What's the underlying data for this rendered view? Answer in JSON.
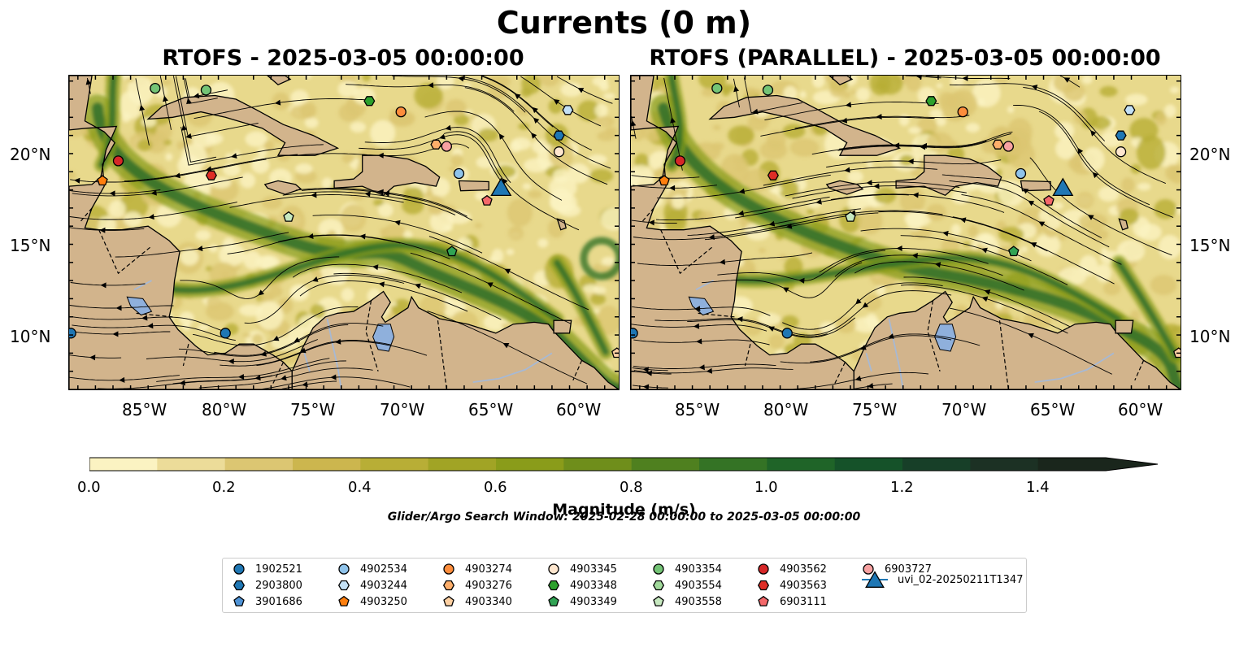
{
  "figure": {
    "title": "Currents (0 m)",
    "search_window": "Glider/Argo Search Window: 2025-02-28 00:00:00 to 2025-03-05 00:00:00"
  },
  "panels": [
    {
      "title": "RTOFS - 2025-03-05 00:00:00"
    },
    {
      "title": "RTOFS (PARALLEL) - 2025-03-05 00:00:00"
    }
  ],
  "axes": {
    "lat_labels": [
      "20°N",
      "15°N",
      "10°N"
    ],
    "lon_labels": [
      "85°W",
      "80°W",
      "75°W",
      "70°W",
      "65°W",
      "60°W"
    ],
    "lon_range": [
      -89.5,
      -58.2
    ],
    "lat_range": [
      7.0,
      24.3
    ]
  },
  "colorbar": {
    "title": "Magnitude (m/s)",
    "tick_labels": [
      "0.0",
      "0.2",
      "0.4",
      "0.6",
      "0.8",
      "1.0",
      "1.2",
      "1.4"
    ],
    "range": [
      0,
      1.5
    ],
    "extend": "max",
    "colors": [
      "#fbf3c2",
      "#ecdc99",
      "#dcc672",
      "#ccb64e",
      "#b8ae36",
      "#a1a425",
      "#8a9c1a",
      "#6f8e1b",
      "#4f801f",
      "#347325",
      "#1f6428",
      "#155229",
      "#173f28",
      "#1c3124",
      "#1a261c"
    ]
  },
  "colors": {
    "land": "#d2b48c",
    "lake": "#8fb0dc",
    "river": "#a7b9d4",
    "ocean_base": "#e8d98c",
    "current_core": "#2f6f2a"
  },
  "legend": {
    "items": [
      {
        "label": "1902521",
        "shape": "circle",
        "color": "#1f77b4"
      },
      {
        "label": "2903800",
        "shape": "hexagon",
        "color": "#1f77b4"
      },
      {
        "label": "3901686",
        "shape": "pentagon",
        "color": "#4f93d6"
      },
      {
        "label": "4902534",
        "shape": "circle",
        "color": "#8fc3ea"
      },
      {
        "label": "4903244",
        "shape": "hexagon",
        "color": "#c3e0f5"
      },
      {
        "label": "4903250",
        "shape": "pentagon",
        "color": "#ff7f0e"
      },
      {
        "label": "4903274",
        "shape": "circle",
        "color": "#fd8d3c"
      },
      {
        "label": "4903276",
        "shape": "hexagon",
        "color": "#fdae6b"
      },
      {
        "label": "4903340",
        "shape": "pentagon",
        "color": "#fdd0a2"
      },
      {
        "label": "4903345",
        "shape": "circle",
        "color": "#fee6ce"
      },
      {
        "label": "4903348",
        "shape": "hexagon",
        "color": "#2ca02c"
      },
      {
        "label": "4903349",
        "shape": "pentagon",
        "color": "#31a354"
      },
      {
        "label": "4903354",
        "shape": "circle",
        "color": "#74c476"
      },
      {
        "label": "4903554",
        "shape": "hexagon",
        "color": "#a1d99b"
      },
      {
        "label": "4903558",
        "shape": "pentagon",
        "color": "#c7e9c0"
      },
      {
        "label": "4903562",
        "shape": "circle",
        "color": "#d62728"
      },
      {
        "label": "4903563",
        "shape": "hexagon",
        "color": "#de2d26"
      },
      {
        "label": "6903111",
        "shape": "pentagon",
        "color": "#f4686a"
      },
      {
        "label": "6903727",
        "shape": "circle",
        "color": "#f8a1a1"
      },
      {
        "label": "uvi_02-20250211T1347",
        "shape": "triangle",
        "color": "#1f77b4"
      }
    ]
  },
  "markers": [
    {
      "id": "1902521",
      "lon": -89.4,
      "lat": 10.1
    },
    {
      "id": "1902521",
      "lon": -80.6,
      "lat": 10.1
    },
    {
      "id": "4903354",
      "lon": -84.6,
      "lat": 23.6
    },
    {
      "id": "4903354",
      "lon": -81.7,
      "lat": 23.5
    },
    {
      "id": "4903348",
      "lon": -72.4,
      "lat": 22.9
    },
    {
      "id": "4903274",
      "lon": -70.6,
      "lat": 22.3
    },
    {
      "id": "4903244",
      "lon": -61.1,
      "lat": 22.4
    },
    {
      "id": "2903800",
      "lon": -61.6,
      "lat": 21.0
    },
    {
      "id": "4903345",
      "lon": -61.6,
      "lat": 20.1
    },
    {
      "id": "4903562",
      "lon": -86.7,
      "lat": 19.6
    },
    {
      "id": "4903250",
      "lon": -87.6,
      "lat": 18.5
    },
    {
      "id": "4903563",
      "lon": -81.4,
      "lat": 18.8
    },
    {
      "id": "4903276",
      "lon": -68.6,
      "lat": 20.5
    },
    {
      "id": "6903727",
      "lon": -68.0,
      "lat": 20.4
    },
    {
      "id": "4902534",
      "lon": -67.3,
      "lat": 18.9
    },
    {
      "id": "6903111",
      "lon": -65.7,
      "lat": 17.4
    },
    {
      "id": "4903558",
      "lon": -77.0,
      "lat": 16.5
    },
    {
      "id": "4903349",
      "lon": -67.7,
      "lat": 14.6
    },
    {
      "id": "4903340",
      "lon": -58.3,
      "lat": 9.0
    },
    {
      "id": "uvi_02-20250211T1347",
      "lon": -64.9,
      "lat": 18.1
    }
  ],
  "icons": {
    "marker_shapes": [
      "circle",
      "hexagon",
      "pentagon",
      "triangle"
    ],
    "flow_arrow": "triangle-arrowhead"
  }
}
